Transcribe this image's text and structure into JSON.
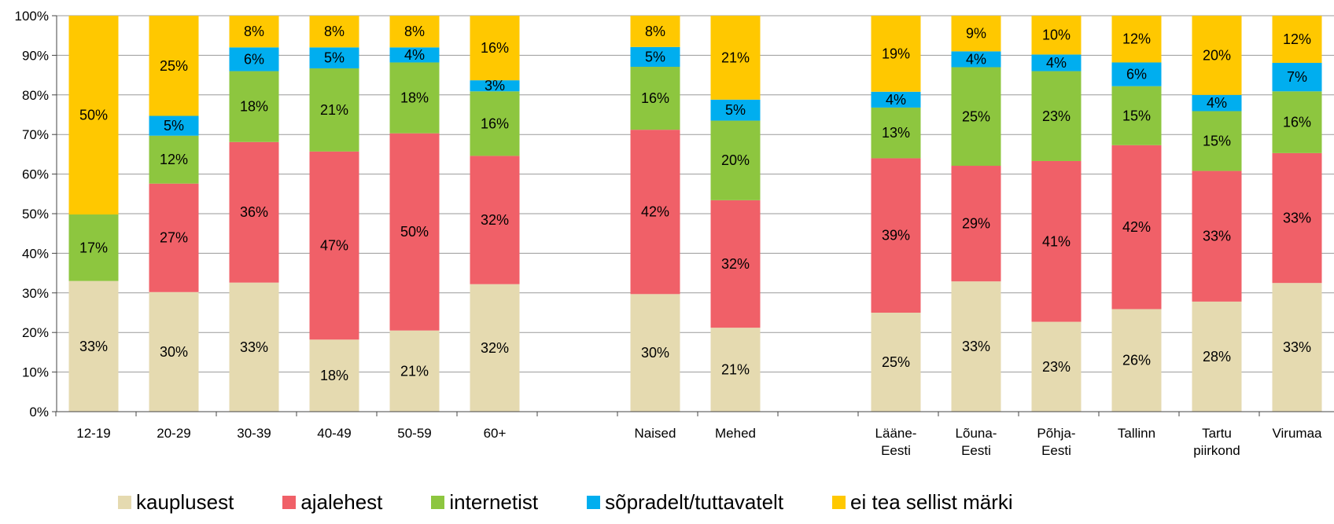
{
  "chart_data": {
    "type": "bar",
    "stacked": true,
    "percent_stacked": true,
    "categories": [
      "12-19",
      "20-29",
      "30-39",
      "40-49",
      "50-59",
      "60+",
      "",
      "Naised",
      "Mehed",
      "",
      "Lääne-\nEesti",
      "Lõuna-\nEesti",
      "Põhja-\nEesti",
      "Tallinn",
      "Tartu\npiirkond",
      "Virumaa"
    ],
    "series": [
      {
        "name": "kauplusest",
        "color": "#E5DAB0",
        "values": [
          33,
          30,
          33,
          18,
          21,
          32,
          null,
          30,
          21,
          null,
          25,
          33,
          23,
          26,
          28,
          33
        ],
        "actual_heights": [
          33,
          30.2,
          32.6,
          18.2,
          20.5,
          32.2,
          null,
          29.7,
          21.2,
          null,
          25,
          32.9,
          22.7,
          25.9,
          27.8,
          32.5
        ]
      },
      {
        "name": "ajalehest",
        "color": "#F06068",
        "values": [
          null,
          27,
          36,
          47,
          50,
          32,
          null,
          42,
          32,
          null,
          39,
          29,
          41,
          42,
          33,
          33
        ],
        "actual_heights": [
          0,
          27.4,
          35.5,
          47.5,
          49.8,
          32.4,
          null,
          41.5,
          32.2,
          null,
          39,
          29.2,
          40.6,
          41.4,
          33,
          32.8
        ]
      },
      {
        "name": "internetist",
        "color": "#8DC63F",
        "values": [
          17,
          12,
          18,
          21,
          18,
          16,
          null,
          16,
          20,
          null,
          13,
          25,
          23,
          15,
          15,
          16
        ],
        "actual_heights": [
          16.8,
          12.1,
          17.9,
          21,
          17.9,
          16.3,
          null,
          15.9,
          20.1,
          null,
          12.8,
          24.9,
          22.7,
          14.9,
          15.1,
          15.6
        ]
      },
      {
        "name": "sõpradelt/tuttavatelt",
        "color": "#00AEEF",
        "values": [
          null,
          5,
          6,
          5,
          4,
          3,
          null,
          5,
          5,
          null,
          4,
          4,
          4,
          6,
          4,
          7
        ],
        "actual_heights": [
          0,
          5,
          6,
          5.3,
          3.8,
          2.8,
          null,
          5,
          5.3,
          null,
          4,
          4,
          4.2,
          6,
          4.1,
          7.2
        ]
      },
      {
        "name": "ei tea sellist märki",
        "color": "#FFC800",
        "values": [
          50,
          25,
          8,
          8,
          8,
          16,
          null,
          8,
          21,
          null,
          19,
          9,
          10,
          12,
          20,
          12
        ],
        "actual_heights": [
          50.2,
          25.3,
          8,
          8,
          8,
          16.3,
          null,
          7.9,
          21.2,
          null,
          19.2,
          9,
          9.8,
          11.8,
          20,
          11.9
        ]
      }
    ],
    "ylim": [
      0,
      100
    ],
    "yticks": [
      "0%",
      "10%",
      "20%",
      "30%",
      "40%",
      "50%",
      "60%",
      "70%",
      "80%",
      "90%",
      "100%"
    ],
    "grid": true,
    "legend_position": "bottom"
  },
  "legend": [
    {
      "label": "kauplusest",
      "color": "#E5DAB0"
    },
    {
      "label": "ajalehest",
      "color": "#F06068"
    },
    {
      "label": "internetist",
      "color": "#8DC63F"
    },
    {
      "label": "sõpradelt/tuttavatelt",
      "color": "#00AEEF"
    },
    {
      "label": "ei tea sellist märki",
      "color": "#FFC800"
    }
  ]
}
